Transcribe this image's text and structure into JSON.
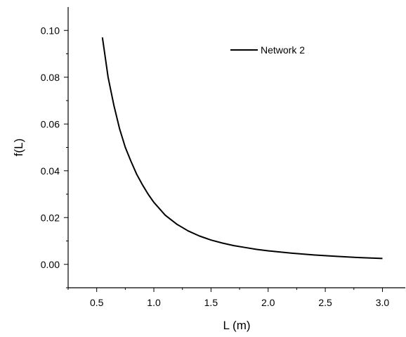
{
  "chart_data": {
    "type": "line",
    "title": "",
    "xlabel": "L (m)",
    "ylabel": "f(L)",
    "xlim": [
      0.25,
      3.2
    ],
    "ylim": [
      -0.01,
      0.11
    ],
    "x_ticks": [
      0.5,
      1.0,
      1.5,
      2.0,
      2.5,
      3.0
    ],
    "x_tick_labels": [
      "0.5",
      "1.0",
      "1.5",
      "2.0",
      "2.5",
      "3.0"
    ],
    "y_ticks": [
      0.0,
      0.02,
      0.04,
      0.06,
      0.08,
      0.1
    ],
    "y_tick_labels": [
      "0.00",
      "0.02",
      "0.04",
      "0.06",
      "0.08",
      "0.10"
    ],
    "grid": false,
    "legend_position": "top-right",
    "series": [
      {
        "name": "Network 2",
        "color": "#000000",
        "x": [
          0.55,
          0.6,
          0.65,
          0.7,
          0.75,
          0.8,
          0.85,
          0.9,
          0.95,
          1.0,
          1.1,
          1.2,
          1.3,
          1.4,
          1.5,
          1.6,
          1.7,
          1.8,
          1.9,
          2.0,
          2.2,
          2.4,
          2.6,
          2.8,
          3.0
        ],
        "y": [
          0.097,
          0.08,
          0.068,
          0.058,
          0.05,
          0.044,
          0.0385,
          0.034,
          0.03,
          0.0265,
          0.021,
          0.0172,
          0.0143,
          0.0121,
          0.0104,
          0.0091,
          0.008,
          0.0072,
          0.0064,
          0.0058,
          0.0048,
          0.004,
          0.0034,
          0.0029,
          0.0025
        ]
      }
    ]
  }
}
